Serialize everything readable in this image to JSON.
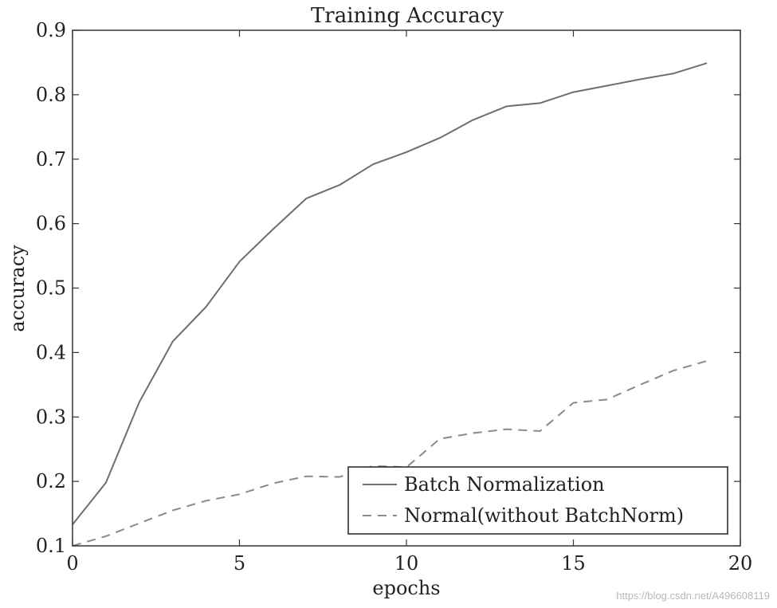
{
  "chart_data": {
    "type": "line",
    "title": "Training Accuracy",
    "xlabel": "epochs",
    "ylabel": "accuracy",
    "xlim": [
      0,
      20
    ],
    "ylim": [
      0.1,
      0.9
    ],
    "xticks": [
      0,
      5,
      10,
      15,
      20
    ],
    "yticks": [
      0.1,
      0.2,
      0.3,
      0.4,
      0.5,
      0.6,
      0.7,
      0.8,
      0.9
    ],
    "xtick_labels": [
      "0",
      "5",
      "10",
      "15",
      "20"
    ],
    "ytick_labels": [
      "0.1",
      "0.2",
      "0.3",
      "0.4",
      "0.5",
      "0.6",
      "0.7",
      "0.8",
      "0.9"
    ],
    "grid": false,
    "legend_position": "lower-right",
    "series": [
      {
        "name": "Batch Normalization",
        "style": "solid",
        "color": "#6e6e6e",
        "x": [
          0,
          1,
          2,
          3,
          4,
          5,
          6,
          7,
          8,
          9,
          10,
          11,
          12,
          13,
          14,
          15,
          16,
          17,
          18,
          19
        ],
        "y": [
          0.133,
          0.198,
          0.323,
          0.417,
          0.471,
          0.541,
          0.591,
          0.639,
          0.66,
          0.692,
          0.711,
          0.733,
          0.761,
          0.782,
          0.787,
          0.804,
          0.814,
          0.824,
          0.833,
          0.849
        ]
      },
      {
        "name": "Normal(without BatchNorm)",
        "style": "dashed",
        "color": "#8a8a8a",
        "x": [
          0,
          1,
          2,
          3,
          4,
          5,
          6,
          7,
          8,
          9,
          10,
          11,
          12,
          13,
          14,
          15,
          16,
          17,
          18,
          19
        ],
        "y": [
          0.1,
          0.115,
          0.135,
          0.155,
          0.17,
          0.18,
          0.197,
          0.208,
          0.207,
          0.224,
          0.222,
          0.266,
          0.275,
          0.281,
          0.278,
          0.322,
          0.327,
          0.35,
          0.372,
          0.387
        ]
      }
    ]
  },
  "watermark": "https://blog.csdn.net/A496608119"
}
